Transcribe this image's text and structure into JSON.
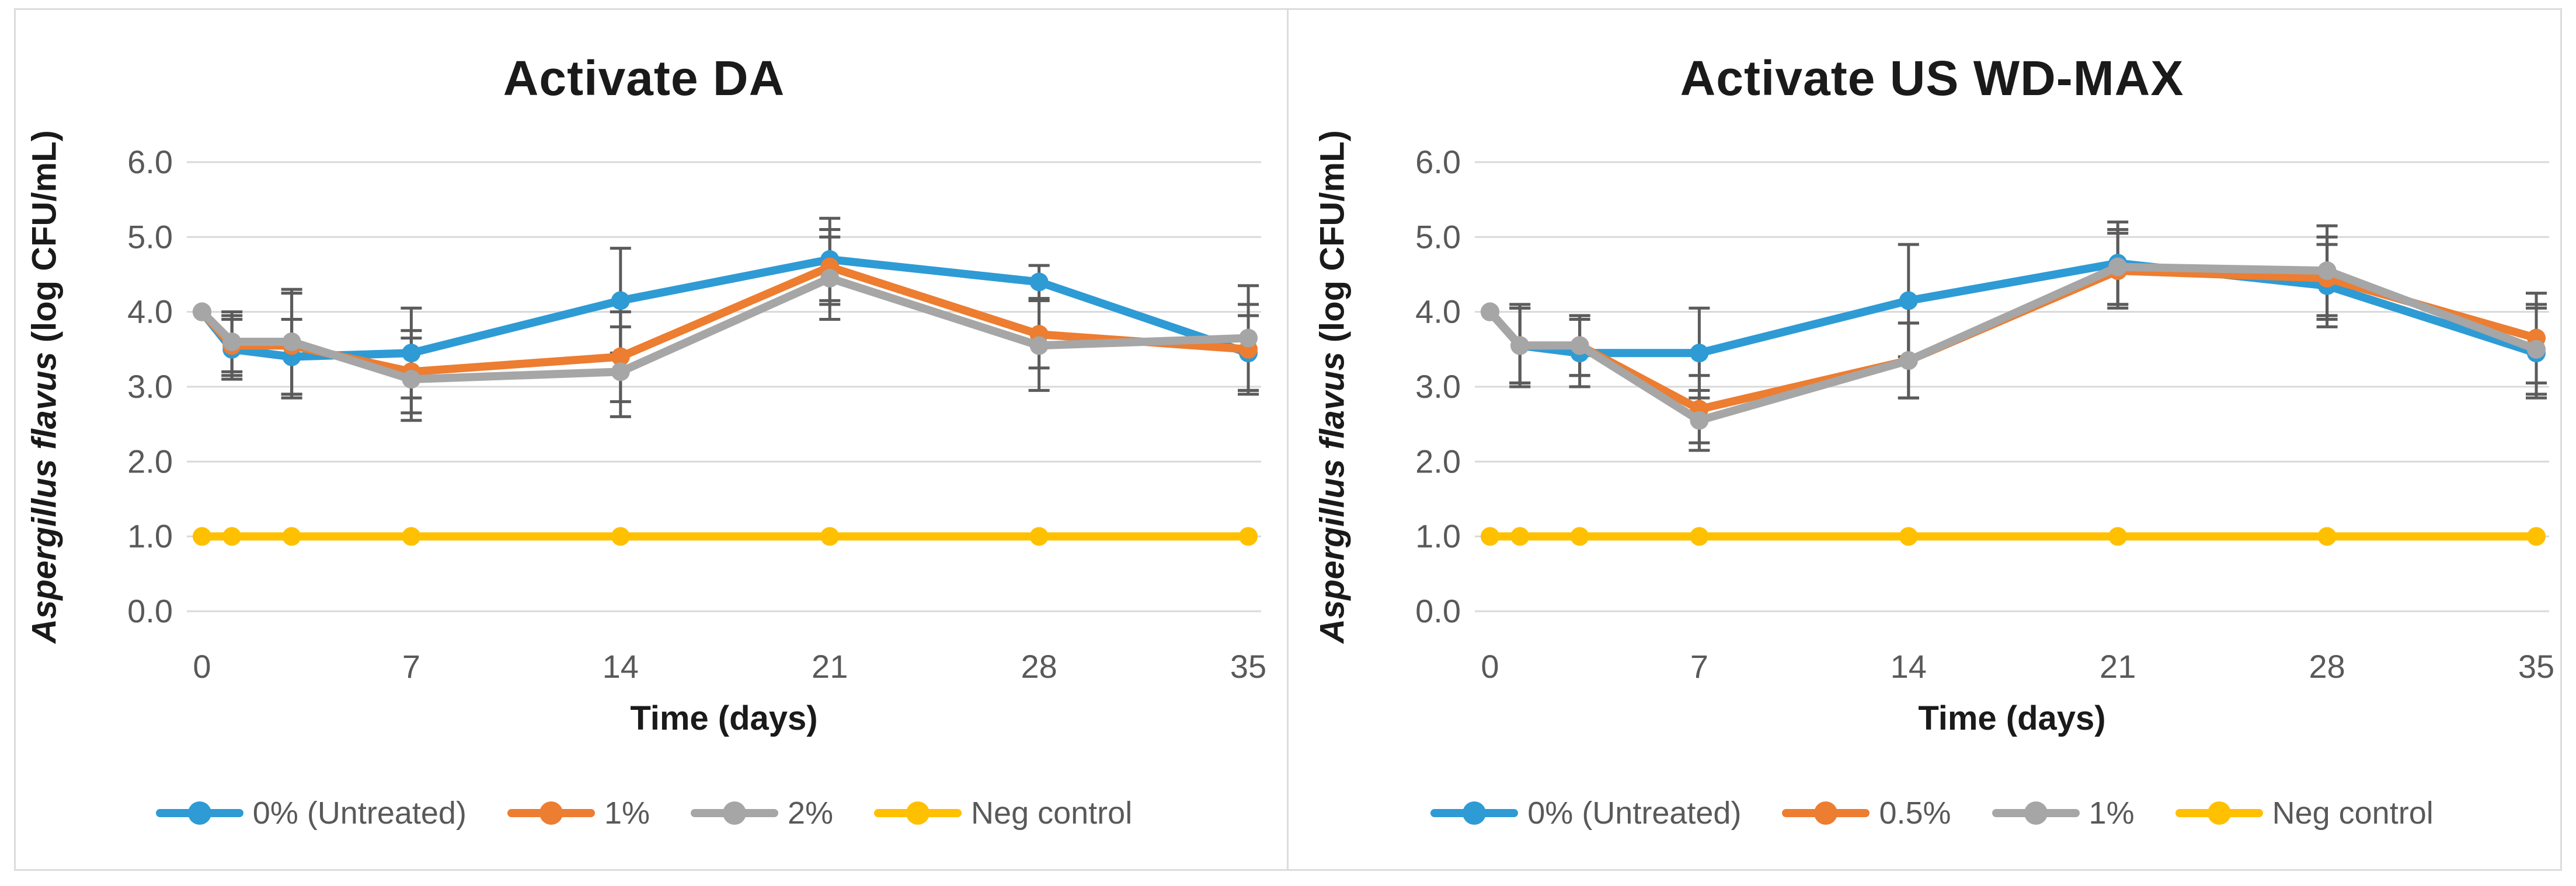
{
  "figure": {
    "border_color": "#dcdcdc",
    "background": "#ffffff"
  },
  "colors": {
    "blue": "#2E9BD5",
    "orange": "#ED7D31",
    "gray": "#A6A6A6",
    "yellow": "#FFC000",
    "grid": "#D9D9D9",
    "tick_text": "#595959",
    "error_bar": "#5B5B5B",
    "title_text": "#1a1a1a",
    "legend_text": "#595959"
  },
  "chart_data": [
    {
      "type": "line",
      "title": "Activate DA",
      "x": [
        0,
        1,
        3,
        7,
        14,
        21,
        28,
        35
      ],
      "x_axis": {
        "label": "Time (days)",
        "ticks": [
          0,
          7,
          14,
          21,
          28,
          35
        ],
        "tick_labels": [
          "0",
          "7",
          "14",
          "21",
          "28",
          "35"
        ],
        "range": [
          0,
          35
        ]
      },
      "y_axis": {
        "label_italic": "Aspergillus flavus",
        "label_rest": " (log CFU/mL)",
        "ticks": [
          0,
          1,
          2,
          3,
          4,
          5,
          6
        ],
        "tick_labels": [
          "0.0",
          "1.0",
          "2.0",
          "3.0",
          "4.0",
          "5.0",
          "6.0"
        ],
        "range": [
          0,
          6.5
        ],
        "gridlines": true
      },
      "legend_position": "bottom",
      "series": [
        {
          "name": "0% (Untreated)",
          "color_key": "blue",
          "values": [
            4.0,
            3.5,
            3.4,
            3.45,
            4.15,
            4.7,
            4.4,
            3.45
          ],
          "errors": [
            0,
            0.4,
            0.5,
            0.6,
            0.7,
            0.55,
            0.22,
            0.5
          ]
        },
        {
          "name": "1%",
          "color_key": "orange",
          "values": [
            4.0,
            3.55,
            3.55,
            3.2,
            3.4,
            4.6,
            3.7,
            3.5
          ],
          "errors": [
            0,
            0.4,
            0.7,
            0.55,
            0.6,
            0.5,
            0.45,
            0.6
          ]
        },
        {
          "name": "2%",
          "color_key": "gray",
          "values": [
            4.0,
            3.6,
            3.6,
            3.1,
            3.2,
            4.45,
            3.55,
            3.65
          ],
          "errors": [
            0,
            0.4,
            0.7,
            0.55,
            0.6,
            0.55,
            0.6,
            0.7
          ]
        },
        {
          "name": "Neg control",
          "color_key": "yellow",
          "values": [
            1.0,
            1.0,
            1.0,
            1.0,
            1.0,
            1.0,
            1.0,
            1.0
          ],
          "errors": [
            0,
            0,
            0,
            0,
            0,
            0,
            0,
            0
          ]
        }
      ]
    },
    {
      "type": "line",
      "title": "Activate US WD-MAX",
      "x": [
        0,
        1,
        3,
        7,
        14,
        21,
        28,
        35
      ],
      "x_axis": {
        "label": "Time (days)",
        "ticks": [
          0,
          7,
          14,
          21,
          28,
          35
        ],
        "tick_labels": [
          "0",
          "7",
          "14",
          "21",
          "28",
          "35"
        ],
        "range": [
          0,
          35
        ]
      },
      "y_axis": {
        "label_italic": "Aspergillus flavus",
        "label_rest": " (log CFU/mL)",
        "ticks": [
          0,
          1,
          2,
          3,
          4,
          5,
          6
        ],
        "tick_labels": [
          "0.0",
          "1.0",
          "2.0",
          "3.0",
          "4.0",
          "5.0",
          "6.0"
        ],
        "range": [
          0,
          6.5
        ],
        "gridlines": true
      },
      "legend_position": "bottom",
      "series": [
        {
          "name": "0% (Untreated)",
          "color_key": "blue",
          "values": [
            4.0,
            3.55,
            3.45,
            3.45,
            4.15,
            4.65,
            4.35,
            3.45
          ],
          "errors": [
            0,
            0.55,
            0.45,
            0.6,
            0.75,
            0.55,
            0.55,
            0.6
          ]
        },
        {
          "name": "0.5%",
          "color_key": "orange",
          "values": [
            4.0,
            3.55,
            3.55,
            2.7,
            3.35,
            4.55,
            4.45,
            3.65
          ],
          "errors": [
            0,
            0.5,
            0.4,
            0.45,
            0.5,
            0.5,
            0.55,
            0.6
          ]
        },
        {
          "name": "1%",
          "color_key": "gray",
          "values": [
            4.0,
            3.55,
            3.55,
            2.55,
            3.35,
            4.6,
            4.55,
            3.5
          ],
          "errors": [
            0,
            0.5,
            0.4,
            0.4,
            0.5,
            0.5,
            0.6,
            0.6
          ]
        },
        {
          "name": "Neg control",
          "color_key": "yellow",
          "values": [
            1.0,
            1.0,
            1.0,
            1.0,
            1.0,
            1.0,
            1.0,
            1.0
          ],
          "errors": [
            0,
            0,
            0,
            0,
            0,
            0,
            0,
            0
          ]
        }
      ]
    }
  ]
}
